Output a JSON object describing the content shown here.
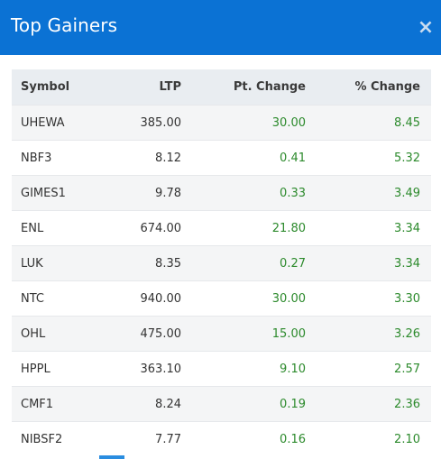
{
  "dialog": {
    "title": "Top Gainers",
    "close_glyph": "×",
    "close_icon": "close-icon"
  },
  "table": {
    "headers": {
      "symbol": "Symbol",
      "ltp": "LTP",
      "pt_change": "Pt. Change",
      "pct_change": "% Change"
    },
    "rows": [
      {
        "symbol": "UHEWA",
        "ltp": "385.00",
        "pt_change": "30.00",
        "pct_change": "8.45"
      },
      {
        "symbol": "NBF3",
        "ltp": "8.12",
        "pt_change": "0.41",
        "pct_change": "5.32"
      },
      {
        "symbol": "GIMES1",
        "ltp": "9.78",
        "pt_change": "0.33",
        "pct_change": "3.49"
      },
      {
        "symbol": "ENL",
        "ltp": "674.00",
        "pt_change": "21.80",
        "pct_change": "3.34"
      },
      {
        "symbol": "LUK",
        "ltp": "8.35",
        "pt_change": "0.27",
        "pct_change": "3.34"
      },
      {
        "symbol": "NTC",
        "ltp": "940.00",
        "pt_change": "30.00",
        "pct_change": "3.30"
      },
      {
        "symbol": "OHL",
        "ltp": "475.00",
        "pt_change": "15.00",
        "pct_change": "3.26"
      },
      {
        "symbol": "HPPL",
        "ltp": "363.10",
        "pt_change": "9.10",
        "pct_change": "2.57"
      },
      {
        "symbol": "CMF1",
        "ltp": "8.24",
        "pt_change": "0.19",
        "pct_change": "2.36"
      },
      {
        "symbol": "NIBSF2",
        "ltp": "7.77",
        "pt_change": "0.16",
        "pct_change": "2.10"
      }
    ]
  },
  "colors": {
    "header_bg": "#0b72d4",
    "gain_green": "#2c8a2c"
  }
}
